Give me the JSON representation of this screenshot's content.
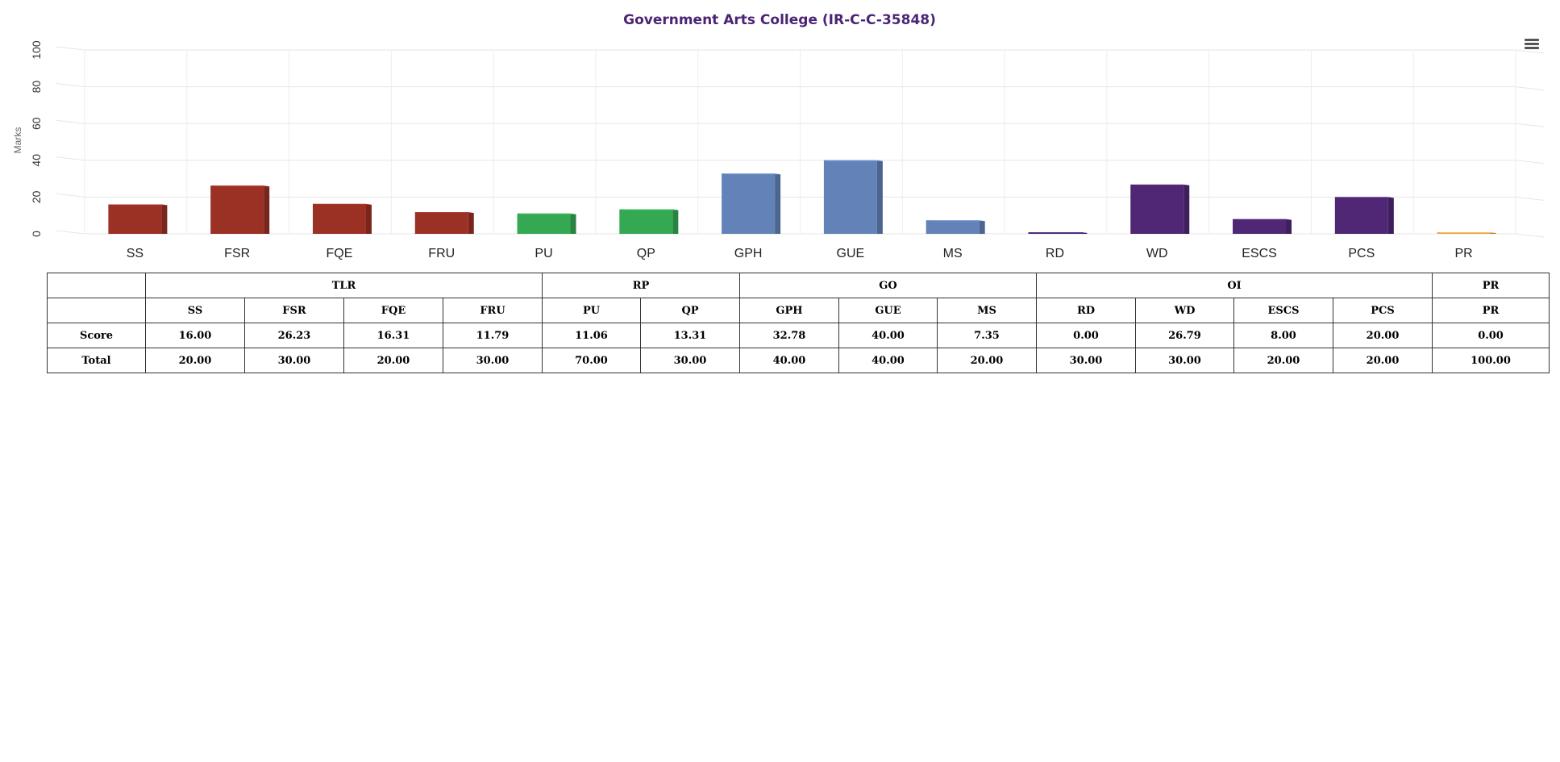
{
  "chart_data": {
    "type": "bar",
    "title": "Government Arts College (IR-C-C-35848)",
    "title_color": "#4b2475",
    "ylabel": "Marks",
    "ylim": [
      0,
      100
    ],
    "yticks": [
      "0",
      "20",
      "40",
      "60",
      "80",
      "100"
    ],
    "grid": true,
    "categories": [
      "SS",
      "FSR",
      "FQE",
      "FRU",
      "PU",
      "QP",
      "GPH",
      "GUE",
      "MS",
      "RD",
      "WD",
      "ESCS",
      "PCS",
      "PR"
    ],
    "values": [
      16.0,
      26.23,
      16.31,
      11.79,
      11.06,
      13.31,
      32.78,
      40.0,
      7.35,
      0.0,
      26.79,
      8.0,
      20.0,
      0.0
    ],
    "colors": [
      "#9b3025",
      "#9b3025",
      "#9b3025",
      "#9b3025",
      "#34a853",
      "#34a853",
      "#6282b8",
      "#6282b8",
      "#6282b8",
      "#4f2775",
      "#4f2775",
      "#4f2775",
      "#4f2775",
      "#f0a04b"
    ]
  },
  "menu": {
    "icon": "hamburger-menu-icon"
  },
  "table": {
    "groups": [
      {
        "label": "",
        "span": 1
      },
      {
        "label": "TLR",
        "span": 4
      },
      {
        "label": "RP",
        "span": 2
      },
      {
        "label": "GO",
        "span": 3
      },
      {
        "label": "OI",
        "span": 4
      },
      {
        "label": "PR",
        "span": 1
      }
    ],
    "subheaders": [
      "",
      "SS",
      "FSR",
      "FQE",
      "FRU",
      "PU",
      "QP",
      "GPH",
      "GUE",
      "MS",
      "RD",
      "WD",
      "ESCS",
      "PCS",
      "PR"
    ],
    "rows": [
      {
        "label": "Score",
        "values": [
          "16.00",
          "26.23",
          "16.31",
          "11.79",
          "11.06",
          "13.31",
          "32.78",
          "40.00",
          "7.35",
          "0.00",
          "26.79",
          "8.00",
          "20.00",
          "0.00"
        ]
      },
      {
        "label": "Total",
        "values": [
          "20.00",
          "30.00",
          "20.00",
          "30.00",
          "70.00",
          "30.00",
          "40.00",
          "40.00",
          "20.00",
          "30.00",
          "30.00",
          "20.00",
          "20.00",
          "100.00"
        ]
      }
    ]
  }
}
